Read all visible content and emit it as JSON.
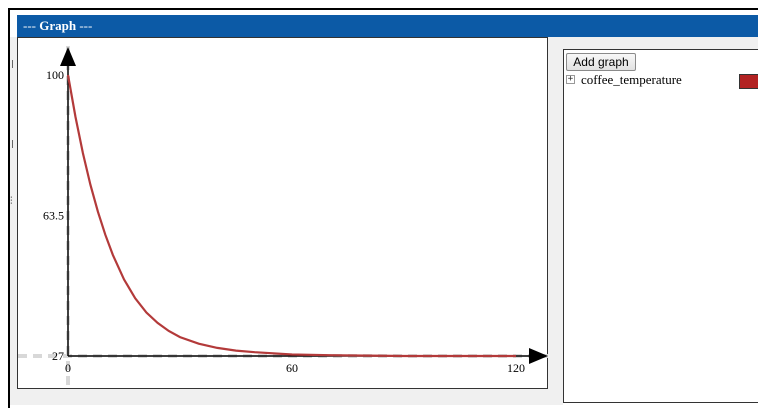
{
  "window": {
    "title_prefix": "---",
    "title": "Graph",
    "title_suffix": "---"
  },
  "side_panel": {
    "add_button_label": "Add graph",
    "expand_icon": "plus-box-icon",
    "items": [
      {
        "label": "coffee_temperature",
        "color": "#b22222"
      }
    ]
  },
  "colors": {
    "titlebar": "#0c5aa6",
    "curve": "#b33a3a",
    "axis_dash": "#d8d8d8"
  },
  "chart_data": {
    "type": "line",
    "x_ticks": [
      "0",
      "60",
      "120"
    ],
    "y_ticks": [
      "27",
      "63.5",
      "100"
    ],
    "xlim": [
      0,
      120
    ],
    "ylim": [
      27,
      100
    ],
    "grid": false,
    "series": [
      {
        "name": "coffee_temperature",
        "x": [
          0,
          2,
          4,
          6,
          8,
          10,
          12,
          15,
          18,
          21,
          24,
          27,
          30,
          35,
          40,
          45,
          50,
          60,
          70,
          80,
          90,
          100,
          110,
          120
        ],
        "y": [
          100,
          89.1,
          79.7,
          71.5,
          64.5,
          58.5,
          53.3,
          46.9,
          42.0,
          38.3,
          35.6,
          33.5,
          31.9,
          30.2,
          29.1,
          28.4,
          28.0,
          27.4,
          27.2,
          27.1,
          27.0,
          27.0,
          27.0,
          27.0
        ]
      }
    ]
  }
}
